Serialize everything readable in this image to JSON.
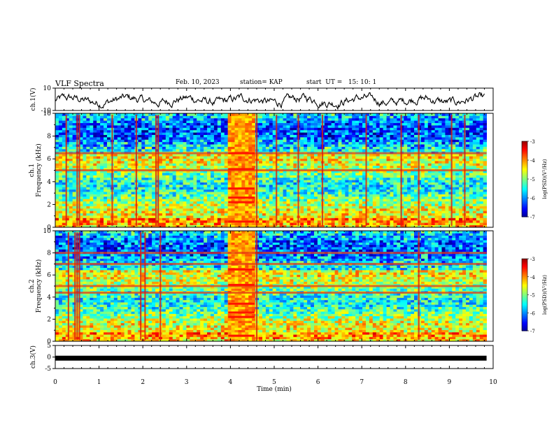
{
  "header": {
    "title": "VLF Spectra",
    "date": "Feb. 10, 2023",
    "station": "station= KAP",
    "start": "start  UT =   15: 10: 1"
  },
  "chart_data": [
    {
      "type": "line",
      "ylabel": "ch.1(V)",
      "ylim": [
        -10,
        10
      ],
      "yticks": [
        10,
        -10
      ],
      "xlim": [
        0,
        10
      ],
      "description_series": "ch1-waveform"
    },
    {
      "type": "heatmap",
      "ylabel_line1": "ch.1",
      "ylabel_line2": "Frequency (kHz)",
      "ylim": [
        0,
        10
      ],
      "yticks": [
        0,
        2,
        4,
        6,
        8,
        10
      ],
      "xlim": [
        0,
        10
      ],
      "colorbar": {
        "label": "log(PSD)(V²/Hz)",
        "range": [
          -7,
          -3
        ],
        "ticks": [
          -3,
          -4,
          -5,
          -6,
          -7
        ]
      },
      "bright_burst": {
        "x": [
          3.95,
          4.55
        ]
      },
      "strong_lines_khz": [
        6.5,
        5.0
      ],
      "vertical_spikes_min": [
        0.25,
        0.5,
        0.55,
        1.3,
        1.85,
        2.3,
        2.35,
        4.6,
        5.05,
        5.55,
        6.1,
        7.1,
        7.9,
        8.3,
        9.05,
        9.35
      ]
    },
    {
      "type": "heatmap",
      "ylabel_line1": "ch.2",
      "ylabel_line2": "Frequency (kHz)",
      "ylim": [
        0,
        10
      ],
      "yticks": [
        0,
        2,
        4,
        6,
        8,
        10
      ],
      "xlim": [
        0,
        10
      ],
      "colorbar": {
        "label": "log(PSD)(V²/Hz)",
        "range": [
          -7,
          -3
        ],
        "ticks": [
          -3,
          -4,
          -5,
          -6,
          -7
        ]
      },
      "bright_burst": {
        "x": [
          3.95,
          4.55
        ]
      },
      "strong_lines_khz": [
        8.0,
        7.0,
        5.0,
        4.4
      ],
      "vertical_spikes_min": [
        0.3,
        0.45,
        0.5,
        0.55,
        1.95,
        2.05,
        2.4,
        4.6,
        8.3
      ]
    },
    {
      "type": "line",
      "ylabel": "ch.3(V)",
      "ylim": [
        -5,
        5
      ],
      "yticks": [
        5,
        0,
        -5
      ],
      "xlim": [
        0,
        10
      ],
      "constant_value": -0.5
    }
  ],
  "xaxis": {
    "label": "Time (min)",
    "ticks": [
      "0",
      "1",
      "2",
      "3",
      "4",
      "5",
      "6",
      "7",
      "8",
      "9",
      "10"
    ]
  }
}
